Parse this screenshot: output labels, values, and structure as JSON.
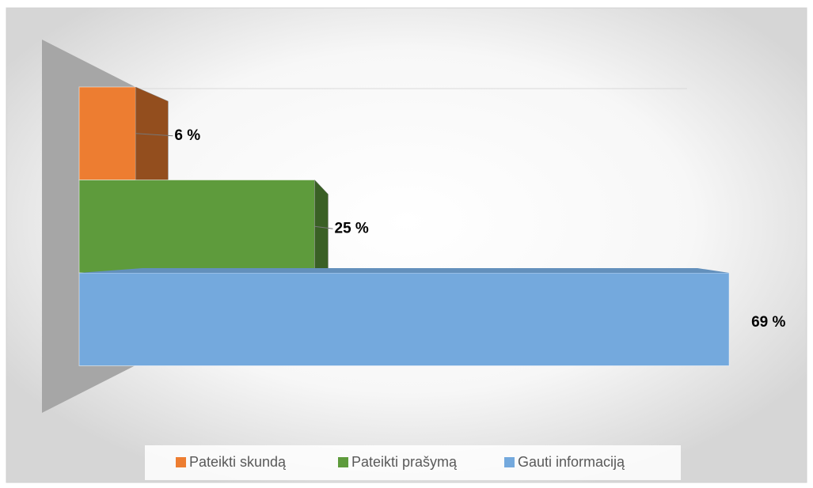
{
  "chart_data": {
    "type": "bar",
    "series": [
      {
        "name": "Pateikti skundą",
        "color": "#ed7d31",
        "values": [
          6
        ],
        "value_labels": [
          "6 %"
        ]
      },
      {
        "name": "Pateikti prašymą",
        "color": "#5e9b3c",
        "values": [
          25
        ],
        "value_labels": [
          "25 %"
        ]
      },
      {
        "name": "Gauti informaciją",
        "color": "#74a9dd",
        "values": [
          69
        ],
        "value_labels": [
          "69 %"
        ]
      }
    ]
  }
}
